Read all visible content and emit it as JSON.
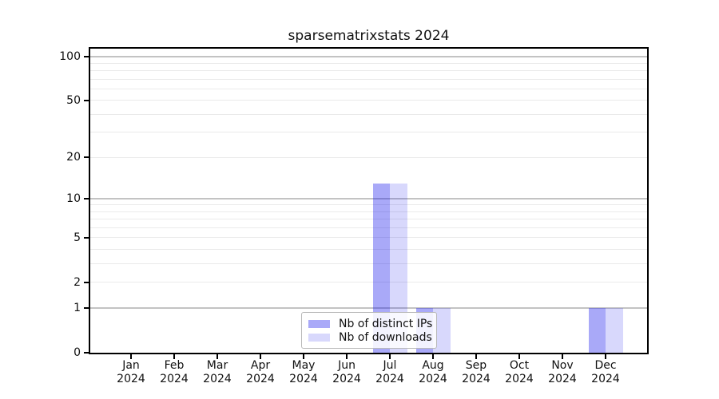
{
  "title": "sparsematrixstats 2024",
  "chart_data": {
    "type": "bar",
    "title": "sparsematrixstats 2024",
    "xlabel": "",
    "ylabel": "",
    "categories": [
      "Jan",
      "Feb",
      "Mar",
      "Apr",
      "May",
      "Jun",
      "Jul",
      "Aug",
      "Sep",
      "Oct",
      "Nov",
      "Dec"
    ],
    "category_year": "2024",
    "series": [
      {
        "name": "Nb of distinct IPs",
        "color": "rgba(10,10,235,0.35)",
        "values": [
          0,
          0,
          0,
          0,
          0,
          0,
          13,
          1,
          0,
          0,
          0,
          1
        ]
      },
      {
        "name": "Nb of downloads",
        "color": "rgba(10,10,235,0.16)",
        "values": [
          0,
          0,
          0,
          0,
          0,
          0,
          13,
          1,
          0,
          0,
          0,
          1
        ]
      }
    ],
    "yscale": "log1p",
    "ylim": [
      0,
      113
    ],
    "y_tick_values": [
      0,
      1,
      2,
      5,
      10,
      20,
      50,
      100
    ],
    "y_major_gridlines": [
      1,
      10,
      100
    ],
    "y_minor_gridlines": [
      2,
      3,
      4,
      5,
      6,
      7,
      8,
      9,
      20,
      30,
      40,
      50,
      60,
      70,
      80,
      90
    ],
    "grid": true,
    "legend_position": "lower center"
  },
  "colors": {
    "axis": "#000000",
    "major_grid": "#c3c3c3",
    "minor_grid": "#eaeaea",
    "background": "#ffffff"
  }
}
